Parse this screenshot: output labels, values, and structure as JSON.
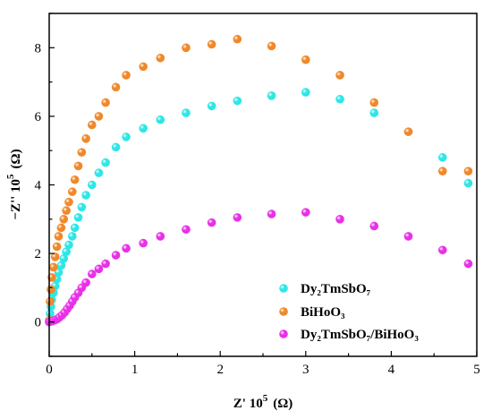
{
  "chart_data": {
    "type": "scatter",
    "xlabel": "Z' 10",
    "xlabel_exp": "5",
    "xlabel_unit": "(Ω)",
    "ylabel": "−Z'' 10",
    "ylabel_exp": "5",
    "ylabel_unit": "(Ω)",
    "xlim": [
      0,
      5
    ],
    "ylim": [
      -1,
      9
    ],
    "xticks": [
      0,
      1,
      2,
      3,
      4,
      5
    ],
    "yticks": [
      0,
      2,
      4,
      6,
      8
    ],
    "grid": false,
    "legend_position": "bottom-right",
    "series": [
      {
        "name": "Dy₂TmSbO₇",
        "color": "#2ee6e6",
        "x": [
          0.0,
          0.01,
          0.02,
          0.03,
          0.05,
          0.07,
          0.09,
          0.11,
          0.14,
          0.17,
          0.2,
          0.23,
          0.27,
          0.3,
          0.34,
          0.38,
          0.43,
          0.5,
          0.58,
          0.66,
          0.78,
          0.9,
          1.1,
          1.3,
          1.6,
          1.9,
          2.2,
          2.6,
          3.0,
          3.4,
          3.8,
          4.2,
          4.6,
          4.9
        ],
        "y": [
          0.02,
          0.25,
          0.45,
          0.65,
          0.85,
          1.05,
          1.25,
          1.45,
          1.65,
          1.85,
          2.05,
          2.25,
          2.5,
          2.75,
          3.05,
          3.35,
          3.7,
          4.0,
          4.35,
          4.65,
          5.1,
          5.4,
          5.65,
          5.9,
          6.1,
          6.3,
          6.45,
          6.6,
          6.7,
          6.5,
          6.1,
          5.55,
          4.8,
          4.05
        ]
      },
      {
        "name": "BiHoO₃",
        "color": "#f0882a",
        "x": [
          0.0,
          0.01,
          0.02,
          0.03,
          0.05,
          0.07,
          0.09,
          0.11,
          0.14,
          0.17,
          0.2,
          0.23,
          0.27,
          0.3,
          0.34,
          0.38,
          0.43,
          0.5,
          0.58,
          0.66,
          0.78,
          0.9,
          1.1,
          1.3,
          1.6,
          1.9,
          2.2,
          2.6,
          3.0,
          3.4,
          3.8,
          4.2,
          4.6,
          4.9
        ],
        "y": [
          0.05,
          0.6,
          0.95,
          1.3,
          1.6,
          1.9,
          2.2,
          2.5,
          2.75,
          3.0,
          3.25,
          3.5,
          3.8,
          4.15,
          4.55,
          4.95,
          5.35,
          5.75,
          6.0,
          6.4,
          6.85,
          7.2,
          7.45,
          7.7,
          8.0,
          8.1,
          8.25,
          8.05,
          7.65,
          7.2,
          6.4,
          5.55,
          4.4,
          4.4
        ]
      },
      {
        "name": "Dy₂TmSbO₇/BiHoO₃",
        "color": "#e830e8",
        "x": [
          0.0,
          0.02,
          0.04,
          0.06,
          0.08,
          0.1,
          0.12,
          0.15,
          0.18,
          0.21,
          0.24,
          0.27,
          0.3,
          0.34,
          0.38,
          0.43,
          0.5,
          0.58,
          0.66,
          0.78,
          0.9,
          1.1,
          1.3,
          1.6,
          1.9,
          2.2,
          2.6,
          3.0,
          3.4,
          3.8,
          4.2,
          4.6,
          4.9
        ],
        "y": [
          0.0,
          0.02,
          0.03,
          0.05,
          0.07,
          0.1,
          0.14,
          0.2,
          0.28,
          0.38,
          0.48,
          0.6,
          0.72,
          0.85,
          1.0,
          1.15,
          1.4,
          1.55,
          1.7,
          1.95,
          2.15,
          2.3,
          2.5,
          2.7,
          2.9,
          3.05,
          3.15,
          3.2,
          3.0,
          2.8,
          2.5,
          2.1,
          1.7
        ]
      }
    ]
  }
}
